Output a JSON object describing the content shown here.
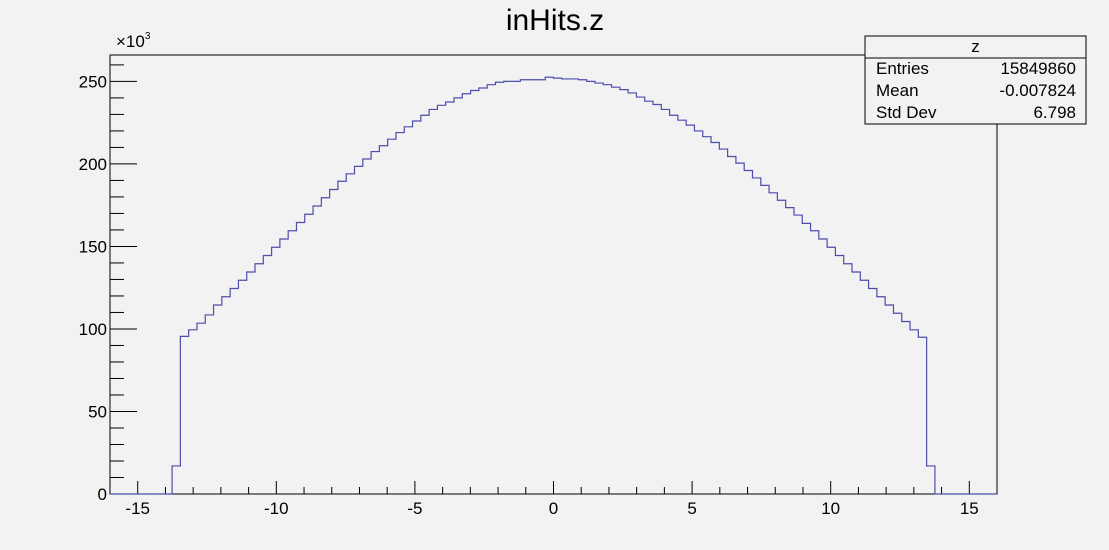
{
  "chart_data": {
    "type": "histogram",
    "title": "inHits.z",
    "xlabel": "",
    "ylabel": "",
    "y_multiplier": "×10",
    "y_multiplier_exp": "3",
    "xlim": [
      -16,
      16
    ],
    "ylim": [
      0,
      266
    ],
    "x_ticks": [
      -15,
      -10,
      -5,
      0,
      5,
      10,
      15
    ],
    "x_tick_labels": [
      "-15",
      "-10",
      "-5",
      "0",
      "5",
      "10",
      "15"
    ],
    "y_ticks": [
      0,
      50,
      100,
      150,
      200,
      250
    ],
    "y_tick_labels": [
      "0",
      "50",
      "100",
      "150",
      "200",
      "250"
    ],
    "bin_width": 0.32,
    "bin_edges": [
      -13.76,
      13.76
    ],
    "values": [
      17,
      95.5,
      99.5,
      103.5,
      108.5,
      114.5,
      119.5,
      124.5,
      129.5,
      134.5,
      139.5,
      144.5,
      149.5,
      154.5,
      159.5,
      164.5,
      169.5,
      174.5,
      179.5,
      184.5,
      189.5,
      194,
      198.5,
      203,
      207.5,
      211,
      215,
      219,
      222.5,
      226,
      229.5,
      233,
      235.5,
      237.5,
      240,
      242.5,
      244.5,
      246,
      248,
      249.5,
      250,
      250,
      251,
      251,
      251,
      252.5,
      252,
      251.5,
      251.5,
      251,
      250,
      249,
      248,
      246.5,
      245,
      243,
      240.5,
      238,
      236,
      233,
      229.5,
      226.5,
      223.5,
      220,
      216.5,
      213,
      209,
      204.5,
      200.5,
      196,
      191.5,
      187,
      182.5,
      178,
      173.5,
      169,
      164,
      159.5,
      154.5,
      149.5,
      144.5,
      139.5,
      134.5,
      129.5,
      124.5,
      119.5,
      114.5,
      109.5,
      104.5,
      99.5,
      95,
      17
    ],
    "line_color": "#4d4dac",
    "grid": false,
    "legend": "top-right",
    "stats": {
      "name": "z",
      "rows": [
        {
          "label": "Entries",
          "value": "15849860"
        },
        {
          "label": "Mean",
          "value": "-0.007824"
        },
        {
          "label": "Std Dev",
          "value": "6.798"
        }
      ]
    }
  }
}
